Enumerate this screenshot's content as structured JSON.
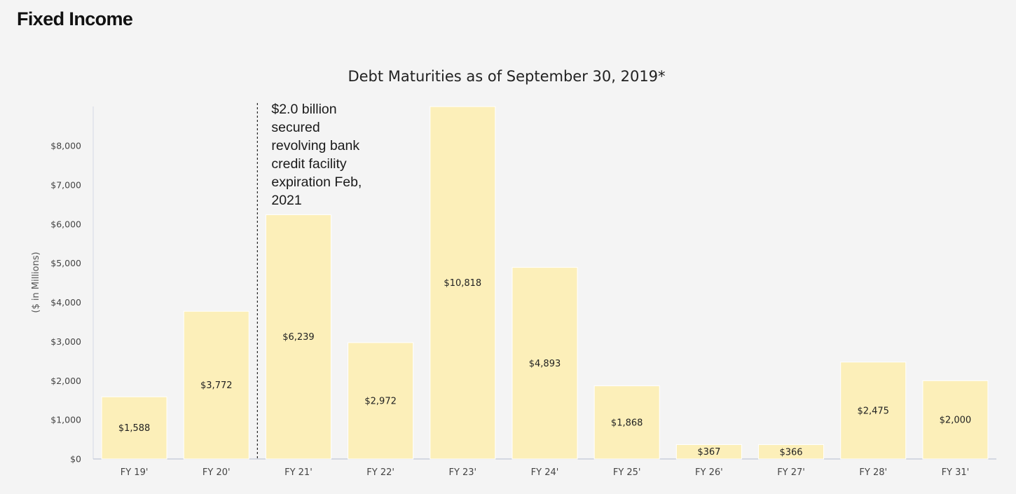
{
  "page": {
    "heading": "Fixed Income"
  },
  "chart_data": {
    "type": "bar",
    "title": "Debt Maturities as of September 30, 2019*",
    "xlabel": "",
    "ylabel": "($ in Millions)",
    "ylim": [
      0,
      9000
    ],
    "yticks": [
      0,
      1000,
      2000,
      3000,
      4000,
      5000,
      6000,
      7000,
      8000
    ],
    "ytick_labels": [
      "$0",
      "$1,000",
      "$2,000",
      "$3,000",
      "$4,000",
      "$5,000",
      "$6,000",
      "$7,000",
      "$8,000"
    ],
    "grid": false,
    "categories": [
      "FY 19'",
      "FY 20'",
      "FY 21'",
      "FY 22'",
      "FY 23'",
      "FY 24'",
      "FY 25'",
      "FY 26'",
      "FY 27'",
      "FY 28'",
      "FY 31'"
    ],
    "values": [
      1588,
      3772,
      6239,
      2972,
      10818,
      4893,
      1868,
      367,
      366,
      2475,
      2000
    ],
    "value_labels": [
      "$1,588",
      "$3,772",
      "$6,239",
      "$2,972",
      "$10,818",
      "$4,893",
      "$1,868",
      "$367",
      "$366",
      "$2,475",
      "$2,000"
    ],
    "bar_color": "#fcefb9",
    "annotation": {
      "lines": [
        "$2.0 billion",
        "secured",
        "revolving bank",
        "credit facility",
        "expiration Feb,",
        "2021"
      ],
      "marker_between": [
        "FY 20'",
        "FY 21'"
      ],
      "marker_style": "dashed vertical line"
    }
  }
}
